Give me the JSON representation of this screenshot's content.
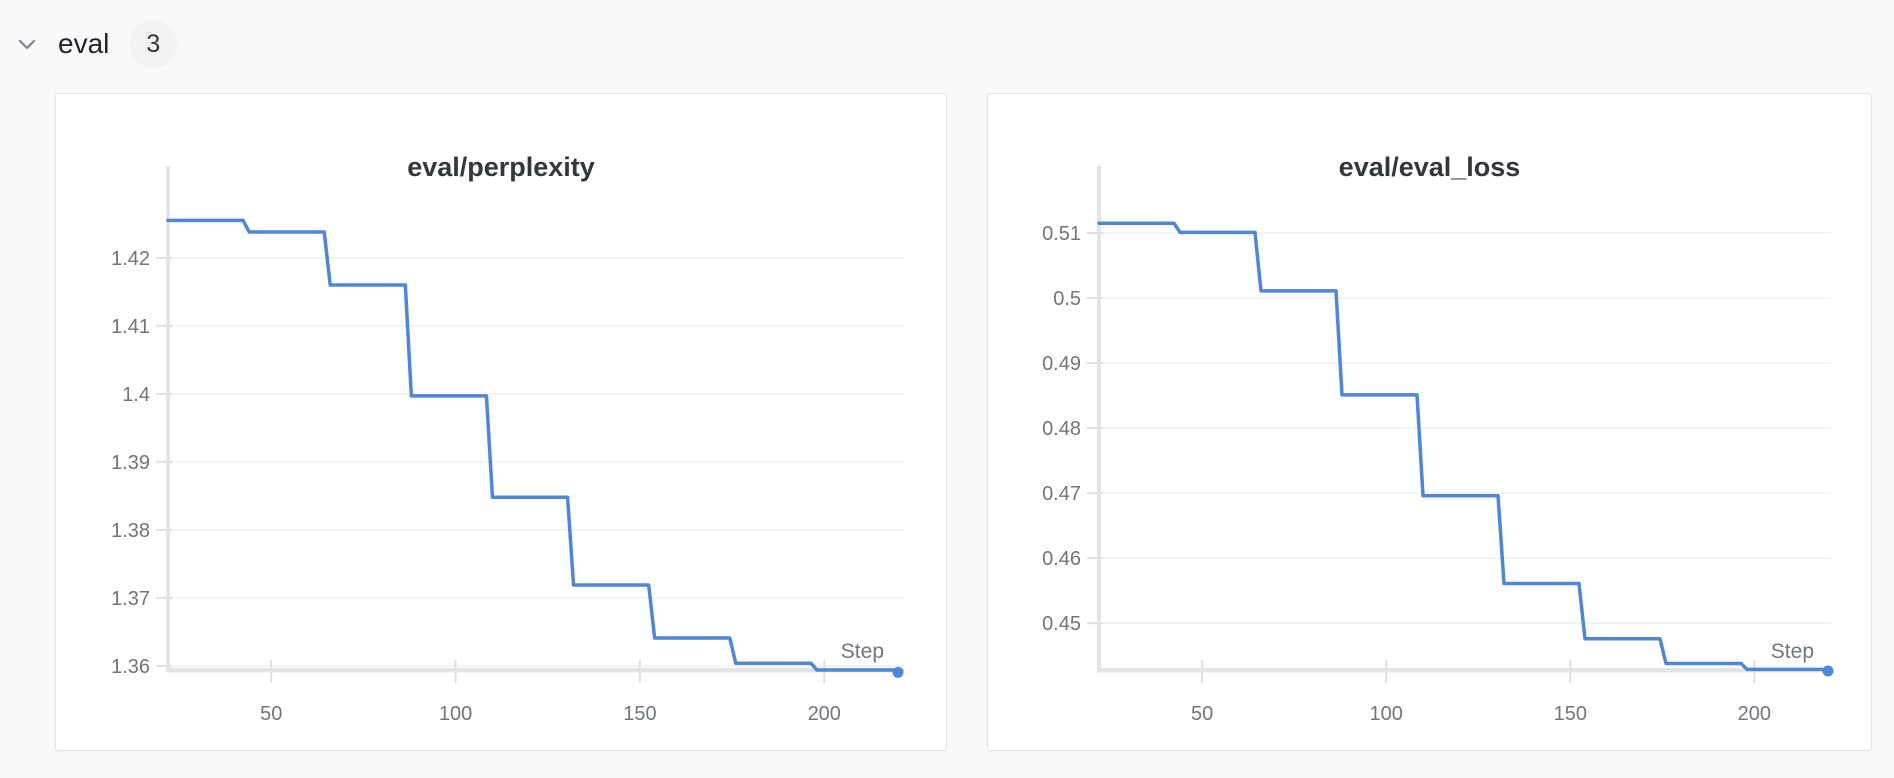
{
  "section_header": {
    "title": "eval",
    "count": "3",
    "chevron_icon": "chevron-down"
  },
  "theme": {
    "accent_line_color": "#4f86d8",
    "grid_color": "#ededef",
    "axis_color": "#e3e4e6",
    "tick_color": "#dfe0e3",
    "label_color": "#71757c",
    "title_color": "#33373d",
    "card_background": "#ffffff",
    "page_background": "#fafafa"
  },
  "chart_data": [
    {
      "type": "line",
      "title": "eval/perplexity",
      "xlabel": "Step",
      "x": [
        22,
        44,
        66,
        88,
        110,
        132,
        154,
        176,
        198,
        220
      ],
      "values": [
        1.4255,
        1.4238,
        1.416,
        1.3997,
        1.3848,
        1.3719,
        1.3641,
        1.3604,
        1.3594,
        1.3592
      ],
      "xlim": [
        22,
        220
      ],
      "ylim": [
        1.3594,
        1.4335
      ],
      "xtick_values": [
        50,
        100,
        150,
        200
      ],
      "xtick_labels": [
        "50",
        "100",
        "150",
        "200"
      ],
      "ytick_values": [
        1.42,
        1.41,
        1.4,
        1.39,
        1.38,
        1.37,
        1.36
      ],
      "ytick_labels": [
        "1.42",
        "1.41",
        "1.4",
        "1.39",
        "1.38",
        "1.37",
        "1.36"
      ],
      "grid": true,
      "legend": "none",
      "end_marker": true
    },
    {
      "type": "line",
      "title": "eval/eval_loss",
      "xlabel": "Step",
      "x": [
        22,
        44,
        66,
        88,
        110,
        132,
        154,
        176,
        198,
        220
      ],
      "values": [
        0.5115,
        0.5101,
        0.5011,
        0.4851,
        0.4696,
        0.4561,
        0.4476,
        0.4438,
        0.4429,
        0.4428
      ],
      "xlim": [
        22,
        220
      ],
      "ylim": [
        0.4428,
        0.5203
      ],
      "xtick_values": [
        50,
        100,
        150,
        200
      ],
      "xtick_labels": [
        "50",
        "100",
        "150",
        "200"
      ],
      "ytick_values": [
        0.51,
        0.5,
        0.49,
        0.48,
        0.47,
        0.46,
        0.45
      ],
      "ytick_labels": [
        "0.51",
        "0.5",
        "0.49",
        "0.48",
        "0.47",
        "0.46",
        "0.45"
      ],
      "grid": true,
      "legend": "none",
      "end_marker": true
    }
  ]
}
